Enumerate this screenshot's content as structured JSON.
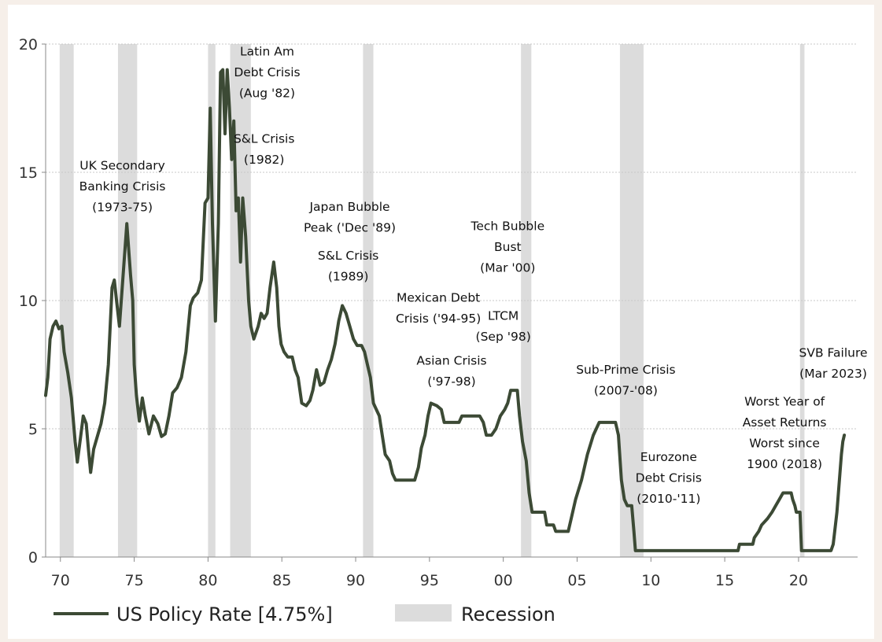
{
  "chart_data": {
    "type": "line",
    "title": "",
    "xlabel": "",
    "ylabel": "",
    "xlim": [
      1969,
      2024
    ],
    "ylim": [
      0,
      20
    ],
    "grid": "horizontal dotted",
    "x_ticks": [
      {
        "v": 1970,
        "label": "70"
      },
      {
        "v": 1975,
        "label": "75"
      },
      {
        "v": 1980,
        "label": "80"
      },
      {
        "v": 1985,
        "label": "85"
      },
      {
        "v": 1990,
        "label": "90"
      },
      {
        "v": 1995,
        "label": "95"
      },
      {
        "v": 2000,
        "label": "00"
      },
      {
        "v": 2005,
        "label": "05"
      },
      {
        "v": 2010,
        "label": "10"
      },
      {
        "v": 2015,
        "label": "15"
      },
      {
        "v": 2020,
        "label": "20"
      }
    ],
    "y_ticks": [
      {
        "v": 0,
        "label": "0"
      },
      {
        "v": 5,
        "label": "5"
      },
      {
        "v": 10,
        "label": "10"
      },
      {
        "v": 15,
        "label": "15"
      },
      {
        "v": 20,
        "label": "20"
      }
    ],
    "line_color": "#3c4a35",
    "recession_color": "#dcdcdc",
    "legend_position": "bottom",
    "legend": [
      {
        "label": "US Policy Rate [4.75%]",
        "kind": "line",
        "color": "#3c4a35"
      },
      {
        "label": "Recession",
        "kind": "band",
        "color": "#dcdcdc"
      }
    ],
    "recessions": [
      [
        1969.95,
        1970.9
      ],
      [
        1973.9,
        1975.2
      ],
      [
        1980.0,
        1980.5
      ],
      [
        1981.5,
        1982.9
      ],
      [
        1990.5,
        1991.2
      ],
      [
        2001.2,
        2001.9
      ],
      [
        2007.9,
        2009.5
      ],
      [
        2020.1,
        2020.4
      ]
    ],
    "series": [
      {
        "values": [
          [
            1969.0,
            6.3
          ],
          [
            1969.15,
            7.0
          ],
          [
            1969.3,
            8.5
          ],
          [
            1969.5,
            9.0
          ],
          [
            1969.7,
            9.2
          ],
          [
            1969.9,
            8.9
          ],
          [
            1970.1,
            9.0
          ],
          [
            1970.25,
            8.0
          ],
          [
            1970.5,
            7.2
          ],
          [
            1970.75,
            6.2
          ],
          [
            1971.0,
            4.5
          ],
          [
            1971.15,
            3.7
          ],
          [
            1971.35,
            4.6
          ],
          [
            1971.55,
            5.5
          ],
          [
            1971.75,
            5.2
          ],
          [
            1971.9,
            4.2
          ],
          [
            1972.05,
            3.3
          ],
          [
            1972.25,
            4.2
          ],
          [
            1972.5,
            4.7
          ],
          [
            1972.75,
            5.2
          ],
          [
            1973.0,
            6.0
          ],
          [
            1973.25,
            7.5
          ],
          [
            1973.5,
            10.5
          ],
          [
            1973.65,
            10.8
          ],
          [
            1973.8,
            10.0
          ],
          [
            1974.0,
            9.0
          ],
          [
            1974.25,
            11.0
          ],
          [
            1974.5,
            13.0
          ],
          [
            1974.75,
            11.0
          ],
          [
            1974.9,
            10.0
          ],
          [
            1975.0,
            7.5
          ],
          [
            1975.15,
            6.3
          ],
          [
            1975.35,
            5.3
          ],
          [
            1975.55,
            6.2
          ],
          [
            1975.75,
            5.5
          ],
          [
            1976.0,
            4.8
          ],
          [
            1976.3,
            5.5
          ],
          [
            1976.6,
            5.2
          ],
          [
            1976.85,
            4.7
          ],
          [
            1977.1,
            4.8
          ],
          [
            1977.35,
            5.5
          ],
          [
            1977.6,
            6.4
          ],
          [
            1977.9,
            6.6
          ],
          [
            1978.2,
            7.0
          ],
          [
            1978.5,
            8.0
          ],
          [
            1978.8,
            9.8
          ],
          [
            1979.0,
            10.1
          ],
          [
            1979.3,
            10.3
          ],
          [
            1979.55,
            10.8
          ],
          [
            1979.8,
            13.8
          ],
          [
            1980.0,
            14.0
          ],
          [
            1980.15,
            17.5
          ],
          [
            1980.3,
            13.0
          ],
          [
            1980.5,
            9.2
          ],
          [
            1980.7,
            13.0
          ],
          [
            1980.85,
            18.9
          ],
          [
            1981.0,
            19.0
          ],
          [
            1981.15,
            16.5
          ],
          [
            1981.3,
            19.0
          ],
          [
            1981.45,
            17.5
          ],
          [
            1981.6,
            15.5
          ],
          [
            1981.75,
            17.0
          ],
          [
            1981.9,
            13.5
          ],
          [
            1982.05,
            14.0
          ],
          [
            1982.2,
            11.5
          ],
          [
            1982.35,
            14.0
          ],
          [
            1982.55,
            12.5
          ],
          [
            1982.75,
            10.0
          ],
          [
            1982.9,
            9.0
          ],
          [
            1983.1,
            8.5
          ],
          [
            1983.4,
            9.0
          ],
          [
            1983.6,
            9.5
          ],
          [
            1983.8,
            9.3
          ],
          [
            1984.0,
            9.5
          ],
          [
            1984.2,
            10.5
          ],
          [
            1984.45,
            11.5
          ],
          [
            1984.65,
            10.5
          ],
          [
            1984.8,
            9.0
          ],
          [
            1984.95,
            8.3
          ],
          [
            1985.15,
            8.0
          ],
          [
            1985.4,
            7.8
          ],
          [
            1985.7,
            7.8
          ],
          [
            1985.9,
            7.3
          ],
          [
            1986.1,
            7.0
          ],
          [
            1986.35,
            6.0
          ],
          [
            1986.65,
            5.9
          ],
          [
            1986.9,
            6.1
          ],
          [
            1987.1,
            6.5
          ],
          [
            1987.35,
            7.3
          ],
          [
            1987.6,
            6.7
          ],
          [
            1987.85,
            6.8
          ],
          [
            1988.1,
            7.3
          ],
          [
            1988.35,
            7.7
          ],
          [
            1988.6,
            8.3
          ],
          [
            1988.85,
            9.2
          ],
          [
            1989.1,
            9.8
          ],
          [
            1989.35,
            9.5
          ],
          [
            1989.6,
            9.0
          ],
          [
            1989.85,
            8.5
          ],
          [
            1990.1,
            8.25
          ],
          [
            1990.4,
            8.25
          ],
          [
            1990.6,
            8.0
          ],
          [
            1990.8,
            7.5
          ],
          [
            1991.0,
            7.0
          ],
          [
            1991.2,
            6.0
          ],
          [
            1991.4,
            5.75
          ],
          [
            1991.6,
            5.5
          ],
          [
            1991.8,
            4.75
          ],
          [
            1992.0,
            4.0
          ],
          [
            1992.3,
            3.75
          ],
          [
            1992.5,
            3.25
          ],
          [
            1992.7,
            3.0
          ],
          [
            1993.5,
            3.0
          ],
          [
            1994.0,
            3.0
          ],
          [
            1994.25,
            3.5
          ],
          [
            1994.45,
            4.25
          ],
          [
            1994.7,
            4.75
          ],
          [
            1994.9,
            5.5
          ],
          [
            1995.1,
            6.0
          ],
          [
            1995.5,
            5.9
          ],
          [
            1995.8,
            5.75
          ],
          [
            1996.0,
            5.25
          ],
          [
            1996.5,
            5.25
          ],
          [
            1997.0,
            5.25
          ],
          [
            1997.2,
            5.5
          ],
          [
            1997.8,
            5.5
          ],
          [
            1998.4,
            5.5
          ],
          [
            1998.65,
            5.25
          ],
          [
            1998.85,
            4.75
          ],
          [
            1999.2,
            4.75
          ],
          [
            1999.5,
            5.0
          ],
          [
            1999.8,
            5.5
          ],
          [
            2000.1,
            5.75
          ],
          [
            2000.3,
            6.0
          ],
          [
            2000.5,
            6.5
          ],
          [
            2000.95,
            6.5
          ],
          [
            2001.1,
            5.5
          ],
          [
            2001.3,
            4.5
          ],
          [
            2001.55,
            3.75
          ],
          [
            2001.75,
            2.5
          ],
          [
            2001.95,
            1.75
          ],
          [
            2002.4,
            1.75
          ],
          [
            2002.8,
            1.75
          ],
          [
            2002.95,
            1.25
          ],
          [
            2003.4,
            1.25
          ],
          [
            2003.55,
            1.0
          ],
          [
            2004.4,
            1.0
          ],
          [
            2004.6,
            1.5
          ],
          [
            2004.9,
            2.25
          ],
          [
            2005.3,
            3.0
          ],
          [
            2005.7,
            4.0
          ],
          [
            2006.1,
            4.75
          ],
          [
            2006.5,
            5.25
          ],
          [
            2007.6,
            5.25
          ],
          [
            2007.8,
            4.75
          ],
          [
            2008.0,
            3.0
          ],
          [
            2008.2,
            2.25
          ],
          [
            2008.4,
            2.0
          ],
          [
            2008.7,
            2.0
          ],
          [
            2008.85,
            1.0
          ],
          [
            2008.95,
            0.25
          ],
          [
            2012.0,
            0.25
          ],
          [
            2015.9,
            0.25
          ],
          [
            2016.0,
            0.5
          ],
          [
            2016.9,
            0.5
          ],
          [
            2017.0,
            0.75
          ],
          [
            2017.3,
            1.0
          ],
          [
            2017.5,
            1.25
          ],
          [
            2017.9,
            1.5
          ],
          [
            2018.2,
            1.75
          ],
          [
            2018.45,
            2.0
          ],
          [
            2018.7,
            2.25
          ],
          [
            2018.95,
            2.5
          ],
          [
            2019.5,
            2.5
          ],
          [
            2019.6,
            2.25
          ],
          [
            2019.75,
            2.0
          ],
          [
            2019.85,
            1.75
          ],
          [
            2020.1,
            1.75
          ],
          [
            2020.2,
            0.25
          ],
          [
            2021.0,
            0.25
          ],
          [
            2022.2,
            0.25
          ],
          [
            2022.35,
            0.5
          ],
          [
            2022.45,
            1.0
          ],
          [
            2022.6,
            1.75
          ],
          [
            2022.7,
            2.5
          ],
          [
            2022.8,
            3.25
          ],
          [
            2022.9,
            4.0
          ],
          [
            2023.0,
            4.5
          ],
          [
            2023.1,
            4.75
          ]
        ]
      }
    ],
    "annotations": [
      {
        "lines": [
          "UK Secondary",
          "Banking Crisis",
          "(1973-75)"
        ],
        "x": 1974.2,
        "y": 15.1
      },
      {
        "lines": [
          "Latin Am",
          "Debt Crisis",
          "(Aug '82)"
        ],
        "x": 1984.0,
        "y": 19.55
      },
      {
        "lines": [
          "S&L Crisis",
          "(1982)"
        ],
        "x": 1983.8,
        "y": 16.15
      },
      {
        "lines": [
          "Japan Bubble",
          "Peak ('Dec '89)"
        ],
        "x": 1989.6,
        "y": 13.5
      },
      {
        "lines": [
          "S&L Crisis",
          "(1989)"
        ],
        "x": 1989.5,
        "y": 11.6
      },
      {
        "lines": [
          "Tech Bubble",
          "Bust",
          "(Mar '00)"
        ],
        "x": 2000.3,
        "y": 12.75
      },
      {
        "lines": [
          "Mexican Debt",
          "Crisis ('94-95)"
        ],
        "x": 1995.6,
        "y": 9.95
      },
      {
        "lines": [
          "LTCM",
          "(Sep '98)"
        ],
        "x": 2000.0,
        "y": 9.25
      },
      {
        "lines": [
          "Asian Crisis",
          "('97-98)"
        ],
        "x": 1996.5,
        "y": 7.5
      },
      {
        "lines": [
          "Sub-Prime Crisis",
          "(2007-'08)"
        ],
        "x": 2008.3,
        "y": 7.15
      },
      {
        "lines": [
          "SVB Failure",
          "(Mar 2023)"
        ],
        "x": 2022.35,
        "y": 7.8
      },
      {
        "lines": [
          "Worst Year of",
          "Asset Returns",
          "Worst since",
          "1900 (2018)"
        ],
        "x": 2019.05,
        "y": 5.9
      },
      {
        "lines": [
          "Eurozone",
          "Debt Crisis",
          "(2010-'11)"
        ],
        "x": 2011.2,
        "y": 3.75
      }
    ]
  }
}
